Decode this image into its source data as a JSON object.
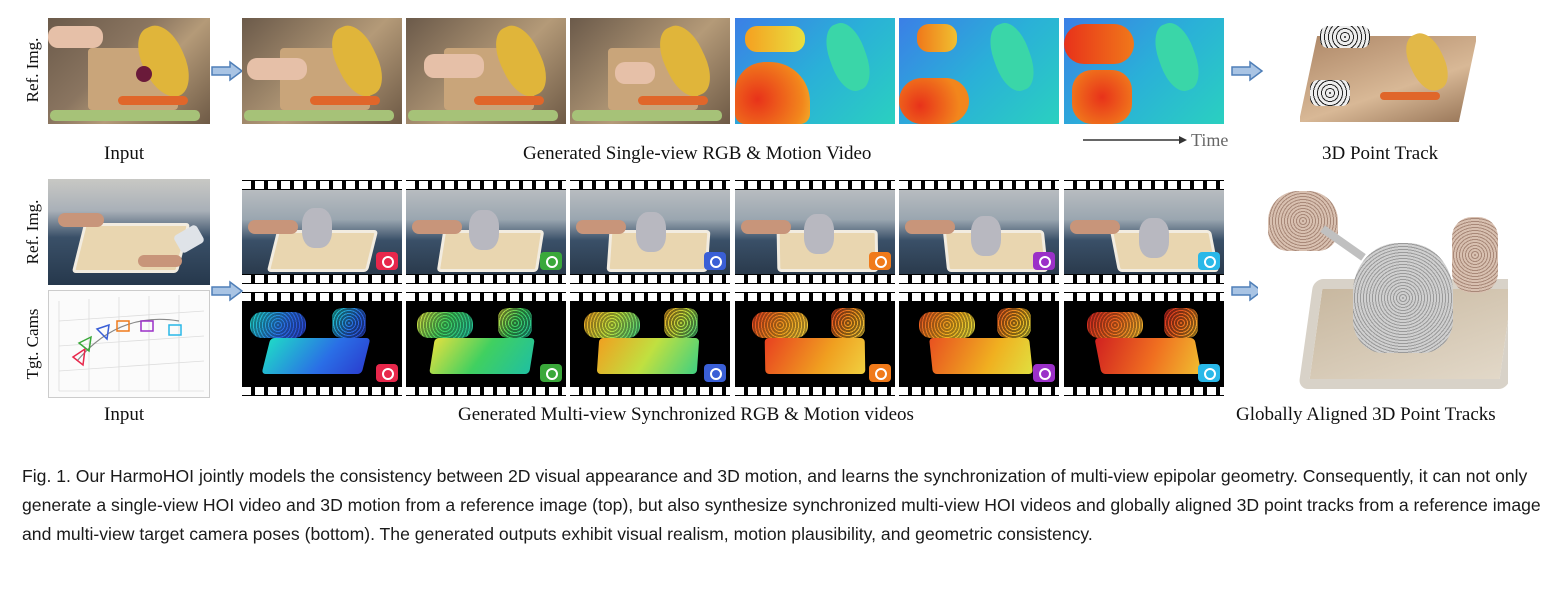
{
  "top_row": {
    "row_label": "Ref. Img.",
    "input_label": "Input",
    "generated_label": "Generated Single-view RGB & Motion Video",
    "time_label": "Time",
    "track_label": "3D Point Track"
  },
  "bottom_row": {
    "ref_label": "Ref. Img.",
    "cams_label": "Tgt. Cams",
    "input_label": "Input",
    "generated_label": "Generated Multi-view Synchronized RGB & Motion videos",
    "track_label": "Globally Aligned 3D Point Tracks",
    "camera_colors": [
      "#e8274b",
      "#3aa83a",
      "#3a5fd6",
      "#f07a1a",
      "#9b30c8",
      "#29b8e8"
    ]
  },
  "caption": {
    "text": "Fig. 1.  Our HarmoHOI jointly models the consistency between 2D visual appearance and 3D motion, and learns the synchronization of multi-view epipolar geometry. Consequently, it can not only generate a single-view HOI video and 3D motion from a reference image (top), but also synthesize synchronized multi-view HOI videos and globally aligned 3D point tracks from a reference image and multi-view target camera poses (bottom). The generated outputs exhibit visual realism, motion plausibility, and geometric consistency."
  }
}
